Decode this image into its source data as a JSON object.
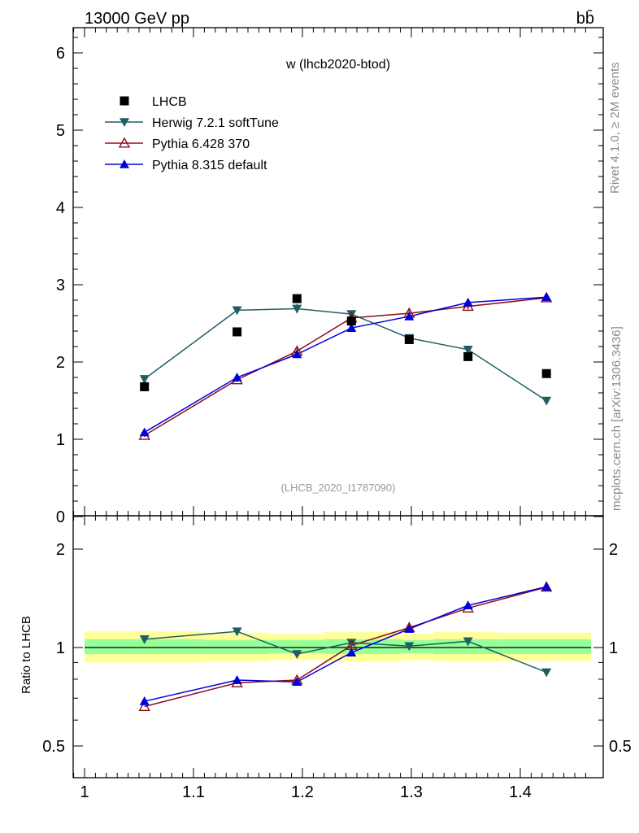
{
  "header": {
    "energy_label": "13000 GeV pp",
    "process_label": "bb̄",
    "side_label_top": "Rivet 4.1.0, ≥ 2M events",
    "side_label_bottom": "mcplots.cern.ch [arXiv:1306.3436]"
  },
  "chart_data": {
    "type": "scatter",
    "title": "w (lhcb2020-btod)",
    "analysis_tag": "(LHCB_2020_I1787090)",
    "xlabel": "",
    "ylabel_ratio": "Ratio to LHCB",
    "xlim": [
      0.99,
      1.47
    ],
    "ylim": [
      0,
      6.3
    ],
    "ratio_ylim": [
      0.42,
      2.3
    ],
    "x_ticks": [
      "1",
      "1.1",
      "1.2",
      "1.3",
      "1.4"
    ],
    "y_ticks": [
      "0",
      "1",
      "2",
      "3",
      "4",
      "5",
      "6"
    ],
    "ratio_y_ticks": [
      "0.5",
      "1",
      "2"
    ],
    "band_edges": [
      1.0,
      1.11,
      1.17,
      1.22,
      1.29,
      1.32,
      1.38,
      1.465
    ],
    "band_green": [
      [
        0.955,
        1.06
      ],
      [
        0.955,
        1.055
      ],
      [
        0.96,
        1.055
      ],
      [
        0.955,
        1.06
      ],
      [
        0.96,
        1.055
      ],
      [
        0.955,
        1.06
      ],
      [
        0.955,
        1.06
      ]
    ],
    "band_yellow": [
      [
        0.9,
        1.12
      ],
      [
        0.905,
        1.11
      ],
      [
        0.915,
        1.1
      ],
      [
        0.905,
        1.115
      ],
      [
        0.915,
        1.1
      ],
      [
        0.905,
        1.115
      ],
      [
        0.91,
        1.11
      ]
    ],
    "data": {
      "name": "LHCB",
      "x": [
        1.055,
        1.14,
        1.195,
        1.245,
        1.298,
        1.352,
        1.424
      ],
      "y": [
        1.68,
        2.39,
        2.82,
        2.53,
        2.29,
        2.07,
        1.85
      ]
    },
    "series": [
      {
        "name": "Herwig 7.2.1 softTune",
        "color": "#1f5f63",
        "marker": "triangle-down",
        "x": [
          1.055,
          1.14,
          1.195,
          1.245,
          1.298,
          1.352,
          1.424
        ],
        "y": [
          1.78,
          2.67,
          2.69,
          2.62,
          2.31,
          2.16,
          1.5
        ],
        "yerr": [
          0.02,
          0.05,
          0.06,
          0.04,
          0.03,
          0.03,
          0.02
        ],
        "ratio": [
          1.06,
          1.12,
          0.955,
          1.035,
          1.01,
          1.045,
          0.84
        ]
      },
      {
        "name": "Pythia 6.428 370",
        "color": "#8b0d1a",
        "marker": "triangle-up-open",
        "x": [
          1.055,
          1.14,
          1.195,
          1.245,
          1.298,
          1.352,
          1.424
        ],
        "y": [
          1.05,
          1.77,
          2.14,
          2.57,
          2.63,
          2.72,
          2.83
        ],
        "yerr": [
          0.02,
          0.03,
          0.04,
          0.05,
          0.04,
          0.04,
          0.03
        ],
        "ratio": [
          0.66,
          0.78,
          0.795,
          1.015,
          1.15,
          1.32,
          1.53
        ]
      },
      {
        "name": "Pythia 8.315 default",
        "color": "#0000dd",
        "marker": "triangle-up",
        "x": [
          1.055,
          1.14,
          1.195,
          1.245,
          1.298,
          1.352,
          1.424
        ],
        "y": [
          1.09,
          1.8,
          2.1,
          2.44,
          2.59,
          2.77,
          2.84
        ],
        "yerr": [
          0.02,
          0.04,
          0.04,
          0.04,
          0.04,
          0.05,
          0.04
        ],
        "ratio": [
          0.685,
          0.795,
          0.785,
          0.965,
          1.14,
          1.345,
          1.535
        ]
      }
    ]
  }
}
